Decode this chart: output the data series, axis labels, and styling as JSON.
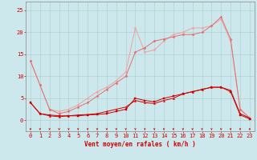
{
  "x": [
    0,
    1,
    2,
    3,
    4,
    5,
    6,
    7,
    8,
    9,
    10,
    11,
    12,
    13,
    14,
    15,
    16,
    17,
    18,
    19,
    20,
    21,
    22,
    23
  ],
  "series": [
    {
      "name": "line1_dark_red",
      "color": "#cc0000",
      "linewidth": 0.7,
      "marker": "s",
      "markersize": 1.5,
      "y": [
        4.0,
        1.5,
        1.2,
        1.0,
        1.0,
        1.0,
        1.2,
        1.3,
        1.5,
        2.0,
        2.5,
        5.0,
        4.5,
        4.2,
        5.0,
        5.5,
        6.0,
        6.5,
        7.0,
        7.5,
        7.5,
        6.5,
        1.2,
        0.3
      ]
    },
    {
      "name": "line2_dark_red2",
      "color": "#cc0000",
      "linewidth": 0.7,
      "marker": "^",
      "markersize": 1.5,
      "y": [
        4.0,
        1.5,
        1.0,
        0.8,
        1.0,
        1.2,
        1.3,
        1.5,
        2.0,
        2.5,
        3.0,
        4.5,
        4.0,
        3.8,
        4.5,
        5.0,
        6.0,
        6.5,
        7.0,
        7.5,
        7.5,
        6.8,
        1.5,
        0.5
      ]
    },
    {
      "name": "line3_medium",
      "color": "#e07070",
      "linewidth": 0.7,
      "marker": "D",
      "markersize": 1.5,
      "y": [
        13.5,
        8.0,
        2.5,
        1.5,
        2.0,
        3.0,
        4.0,
        5.5,
        7.0,
        8.5,
        10.0,
        15.5,
        16.5,
        18.0,
        18.5,
        19.0,
        19.5,
        19.5,
        20.0,
        21.5,
        23.5,
        18.5,
        2.5,
        0.5
      ]
    },
    {
      "name": "line4_light",
      "color": "#f0a0a0",
      "linewidth": 0.7,
      "marker": "o",
      "markersize": 1.5,
      "y": [
        13.5,
        8.0,
        2.5,
        2.0,
        2.5,
        3.5,
        5.0,
        6.5,
        7.5,
        9.0,
        11.0,
        21.0,
        15.5,
        16.0,
        18.0,
        19.5,
        20.0,
        21.0,
        21.0,
        21.5,
        23.0,
        18.0,
        2.5,
        0.5
      ]
    }
  ],
  "xlim": [
    -0.5,
    23.5
  ],
  "ylim": [
    -2.5,
    27
  ],
  "yticks": [
    0,
    5,
    10,
    15,
    20,
    25
  ],
  "xlabel": "Vent moyen/en rafales ( km/h )",
  "bg_color": "#cce8ec",
  "grid_color": "#aacccc",
  "label_color": "#cc0000",
  "tick_color": "#cc0000",
  "xlabel_color": "#cc0000",
  "xlabel_fontsize": 5.5,
  "tick_fontsize": 5,
  "ytick_fontsize": 5
}
